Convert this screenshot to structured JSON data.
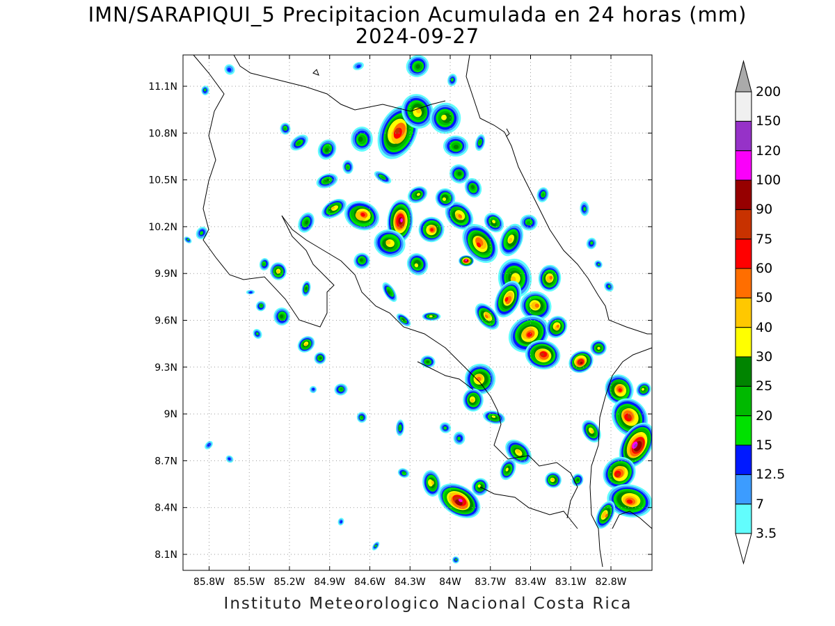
{
  "title": "IMN/SARAPIQUI_5 Precipitacion Acumulada en 24 horas (mm)",
  "date": "2024-09-27",
  "footer": "Instituto Meteorologico Nacional Costa Rica",
  "map": {
    "lon_range": [
      -86.0,
      -82.5
    ],
    "lat_range": [
      8.0,
      11.3
    ],
    "x_ticks": [
      "85.8W",
      "85.5W",
      "85.2W",
      "84.9W",
      "84.6W",
      "84.3W",
      "84W",
      "83.7W",
      "83.4W",
      "83.1W",
      "82.8W"
    ],
    "y_ticks": [
      "11.1N",
      "10.8N",
      "10.5N",
      "10.2N",
      "9.9N",
      "9.6N",
      "9.3N",
      "9N",
      "8.7N",
      "8.4N",
      "8.1N"
    ]
  },
  "colorbar": {
    "labels": [
      "3.5",
      "7",
      "12.5",
      "15",
      "20",
      "25",
      "30",
      "40",
      "50",
      "60",
      "75",
      "90",
      "100",
      "120",
      "150",
      "200"
    ],
    "colors": [
      "#62fdfd",
      "#3c9cff",
      "#0019ff",
      "#00e100",
      "#00b900",
      "#008400",
      "#ffff00",
      "#ffc800",
      "#ff6e00",
      "#ff0000",
      "#c83200",
      "#960000",
      "#fa00fa",
      "#9632c8",
      "#f0f0f0",
      "#aaaaaa"
    ]
  }
}
